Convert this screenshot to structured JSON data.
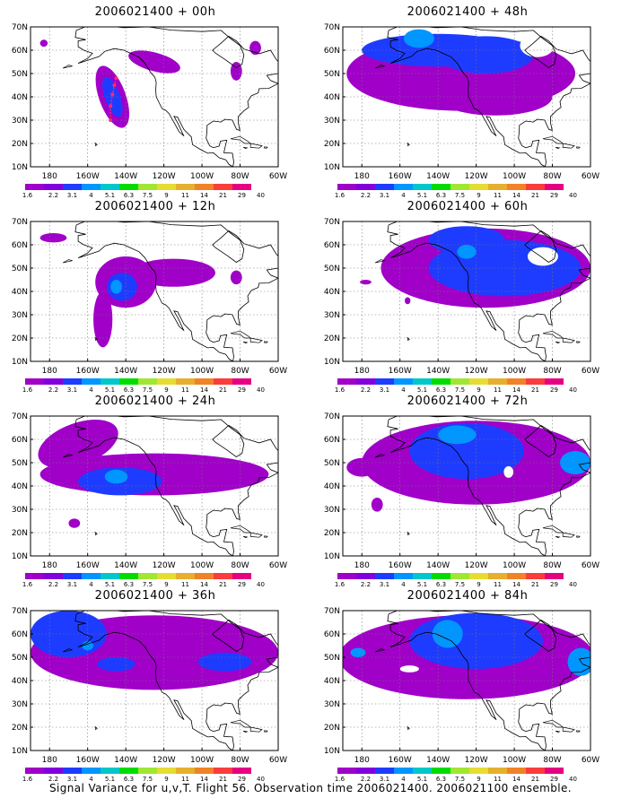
{
  "caption": "Signal Variance for u,v,T. Flight 56. Observation time 2006021400. 2006021100 ensemble.",
  "colorbar": {
    "levels": [
      "1.6",
      "2.2",
      "3.1",
      "4",
      "5.1",
      "6.3",
      "7.5",
      "9",
      "11",
      "14",
      "21",
      "29",
      "40"
    ],
    "colors": [
      "#a000c8",
      "#8200dc",
      "#1e3cff",
      "#0096ff",
      "#00c8c8",
      "#00dc00",
      "#a0e632",
      "#e6dc32",
      "#e6af2d",
      "#f08228",
      "#fa3c3c",
      "#e60082"
    ]
  },
  "axes": {
    "lat_ticks": [
      "10N",
      "20N",
      "30N",
      "40N",
      "50N",
      "60N",
      "70N"
    ],
    "lon_ticks": [
      "180",
      "160W",
      "140W",
      "120W",
      "100W",
      "80W",
      "60W"
    ],
    "lat_range": [
      10,
      70
    ],
    "lon_range": [
      -190,
      -60
    ]
  },
  "chart_data": [
    {
      "type": "contour-map",
      "title": "2006021400 + 00h",
      "blobs": [
        {
          "lon": -147,
          "lat": 40,
          "rx": 7,
          "ry": 14,
          "rot": -20,
          "level": 0
        },
        {
          "lon": -125,
          "lat": 55,
          "rx": 14,
          "ry": 4,
          "rot": 15,
          "level": 0
        },
        {
          "lon": -147,
          "lat": 40,
          "rx": 4,
          "ry": 9,
          "rot": -20,
          "level": 1
        },
        {
          "lon": -82,
          "lat": 51,
          "rx": 3,
          "ry": 4,
          "rot": 0,
          "level": 0
        },
        {
          "lon": -72,
          "lat": 61,
          "rx": 3,
          "ry": 3,
          "rot": 0,
          "level": 0
        },
        {
          "lon": -183,
          "lat": 63,
          "rx": 2,
          "ry": 1.5,
          "rot": 0,
          "level": 0
        }
      ],
      "track": [
        [
          -148,
          30
        ],
        [
          -148,
          36
        ],
        [
          -147,
          41
        ],
        [
          -146,
          45
        ],
        [
          -145,
          48
        ]
      ]
    },
    {
      "type": "contour-map",
      "title": "2006021400 + 48h",
      "blobs": [
        {
          "lon": -128,
          "lat": 50,
          "rx": 60,
          "ry": 16,
          "rot": 0,
          "level": 0
        },
        {
          "lon": -110,
          "lat": 40,
          "rx": 30,
          "ry": 8,
          "rot": 0,
          "level": 0
        },
        {
          "lon": -140,
          "lat": 60,
          "rx": 40,
          "ry": 7,
          "rot": 0,
          "level": 1
        },
        {
          "lon": -115,
          "lat": 58,
          "rx": 25,
          "ry": 8,
          "rot": 0,
          "level": 1
        },
        {
          "lon": -150,
          "lat": 65,
          "rx": 8,
          "ry": 4,
          "rot": 0,
          "level": 2
        }
      ],
      "holes": [
        {
          "lon": -88,
          "lat": 62,
          "rx": 9,
          "ry": 5
        }
      ]
    },
    {
      "type": "contour-map",
      "title": "2006021400 + 12h",
      "blobs": [
        {
          "lon": -140,
          "lat": 44,
          "rx": 16,
          "ry": 11,
          "rot": 0,
          "level": 0
        },
        {
          "lon": -115,
          "lat": 48,
          "rx": 22,
          "ry": 6,
          "rot": 0,
          "level": 0
        },
        {
          "lon": -152,
          "lat": 28,
          "rx": 5,
          "ry": 12,
          "rot": 0,
          "level": 0
        },
        {
          "lon": -178,
          "lat": 63,
          "rx": 7,
          "ry": 2,
          "rot": 0,
          "level": 0
        },
        {
          "lon": -82,
          "lat": 46,
          "rx": 3,
          "ry": 3,
          "rot": 0,
          "level": 0
        },
        {
          "lon": -142,
          "lat": 42,
          "rx": 8,
          "ry": 6,
          "rot": 0,
          "level": 1
        },
        {
          "lon": -145,
          "lat": 42,
          "rx": 3,
          "ry": 3,
          "rot": 0,
          "level": 2
        }
      ]
    },
    {
      "type": "contour-map",
      "title": "2006021400 + 60h",
      "blobs": [
        {
          "lon": -115,
          "lat": 50,
          "rx": 55,
          "ry": 17,
          "rot": 0,
          "level": 0
        },
        {
          "lon": -105,
          "lat": 50,
          "rx": 40,
          "ry": 12,
          "rot": 0,
          "level": 1
        },
        {
          "lon": -125,
          "lat": 62,
          "rx": 20,
          "ry": 6,
          "rot": 0,
          "level": 1
        },
        {
          "lon": -125,
          "lat": 57,
          "rx": 5,
          "ry": 3,
          "rot": 0,
          "level": 2
        },
        {
          "lon": -178,
          "lat": 44,
          "rx": 3,
          "ry": 1,
          "rot": 0,
          "level": 0
        },
        {
          "lon": -156,
          "lat": 36,
          "rx": 1.5,
          "ry": 1.5,
          "rot": 0,
          "level": 0
        }
      ],
      "holes": [
        {
          "lon": -85,
          "lat": 55,
          "rx": 8,
          "ry": 4
        }
      ]
    },
    {
      "type": "contour-map",
      "title": "2006021400 + 24h",
      "blobs": [
        {
          "lon": -125,
          "lat": 45,
          "rx": 60,
          "ry": 9,
          "rot": 0,
          "level": 0
        },
        {
          "lon": -165,
          "lat": 58,
          "rx": 22,
          "ry": 9,
          "rot": -20,
          "level": 0
        },
        {
          "lon": -143,
          "lat": 42,
          "rx": 22,
          "ry": 6,
          "rot": 0,
          "level": 1
        },
        {
          "lon": -145,
          "lat": 44,
          "rx": 6,
          "ry": 3,
          "rot": 0,
          "level": 2
        },
        {
          "lon": -167,
          "lat": 24,
          "rx": 3,
          "ry": 2,
          "rot": 0,
          "level": 0
        }
      ]
    },
    {
      "type": "contour-map",
      "title": "2006021400 + 72h",
      "blobs": [
        {
          "lon": -120,
          "lat": 50,
          "rx": 60,
          "ry": 18,
          "rot": 0,
          "level": 0
        },
        {
          "lon": -125,
          "lat": 55,
          "rx": 30,
          "ry": 12,
          "rot": 0,
          "level": 1
        },
        {
          "lon": -130,
          "lat": 62,
          "rx": 10,
          "ry": 4,
          "rot": 0,
          "level": 2
        },
        {
          "lon": -68,
          "lat": 50,
          "rx": 8,
          "ry": 5,
          "rot": 0,
          "level": 2
        },
        {
          "lon": -180,
          "lat": 48,
          "rx": 8,
          "ry": 4,
          "rot": 0,
          "level": 0
        },
        {
          "lon": -172,
          "lat": 32,
          "rx": 3,
          "ry": 3,
          "rot": 0,
          "level": 0
        }
      ],
      "holes": [
        {
          "lon": -103,
          "lat": 46,
          "rx": 2.5,
          "ry": 2.5
        }
      ]
    },
    {
      "type": "contour-map",
      "title": "2006021400 + 36h",
      "blobs": [
        {
          "lon": -125,
          "lat": 52,
          "rx": 65,
          "ry": 16,
          "rot": 0,
          "level": 0
        },
        {
          "lon": -170,
          "lat": 60,
          "rx": 20,
          "ry": 10,
          "rot": 0,
          "level": 1
        },
        {
          "lon": -145,
          "lat": 47,
          "rx": 10,
          "ry": 3,
          "rot": 0,
          "level": 1
        },
        {
          "lon": -88,
          "lat": 48,
          "rx": 14,
          "ry": 4,
          "rot": 0,
          "level": 1
        },
        {
          "lon": -160,
          "lat": 55,
          "rx": 3,
          "ry": 2,
          "rot": 0,
          "level": 2
        }
      ]
    },
    {
      "type": "contour-map",
      "title": "2006021400 + 84h",
      "blobs": [
        {
          "lon": -125,
          "lat": 50,
          "rx": 67,
          "ry": 18,
          "rot": 0,
          "level": 0
        },
        {
          "lon": -120,
          "lat": 57,
          "rx": 35,
          "ry": 12,
          "rot": 0,
          "level": 1
        },
        {
          "lon": -135,
          "lat": 60,
          "rx": 8,
          "ry": 6,
          "rot": 0,
          "level": 2
        },
        {
          "lon": -65,
          "lat": 48,
          "rx": 7,
          "ry": 6,
          "rot": 0,
          "level": 2
        },
        {
          "lon": -182,
          "lat": 52,
          "rx": 4,
          "ry": 2,
          "rot": 0,
          "level": 2
        }
      ],
      "holes": [
        {
          "lon": -155,
          "lat": 45,
          "rx": 5,
          "ry": 1.5
        }
      ]
    }
  ]
}
